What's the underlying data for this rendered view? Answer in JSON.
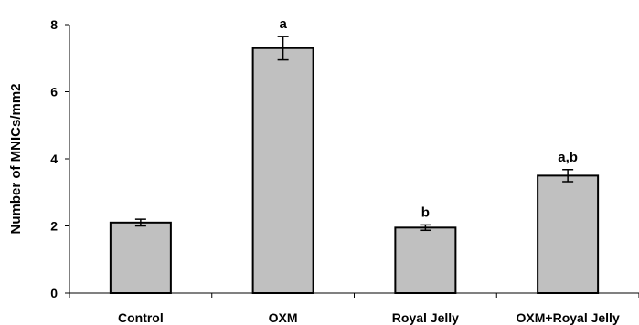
{
  "chart_data": {
    "type": "bar",
    "categories": [
      "Control",
      "OXM",
      "Royal Jelly",
      "OXM+Royal Jelly"
    ],
    "values": [
      2.1,
      7.3,
      1.95,
      3.5
    ],
    "errors": [
      0.1,
      0.35,
      0.08,
      0.18
    ],
    "annotations": [
      "",
      "a",
      "b",
      "a,b"
    ],
    "ylabel": "Number of MNICs/mm2",
    "xlabel": "",
    "title": "",
    "ylim": [
      0,
      8
    ],
    "yticks": [
      "0",
      "2",
      "4",
      "6",
      "8"
    ],
    "grid": false,
    "legend": "none",
    "bar_color": "#c0c0c0",
    "edge_color": "#000000"
  }
}
